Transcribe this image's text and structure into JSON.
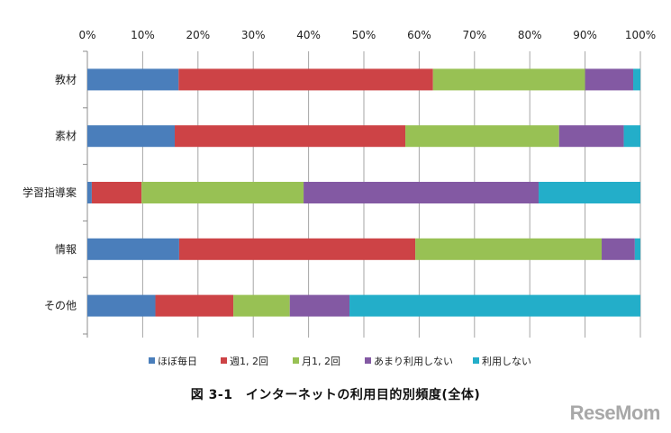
{
  "chart_data": {
    "type": "bar",
    "orientation": "horizontal",
    "stacked": "percent",
    "title": "図 3-1　インターネットの利用目的別頻度(全体)",
    "xlabel": "",
    "ylabel": "",
    "xlim": [
      0,
      100
    ],
    "x_ticks": [
      "0%",
      "10%",
      "20%",
      "30%",
      "40%",
      "50%",
      "60%",
      "70%",
      "80%",
      "90%",
      "100%"
    ],
    "x_axis_position": "top",
    "grid": true,
    "legend_position": "bottom",
    "categories": [
      "教材",
      "素材",
      "学習指導案",
      "情報",
      "その他"
    ],
    "series": [
      {
        "name": "ほぼ毎日",
        "color": "#4a7ebb",
        "values": [
          16.5,
          15.8,
          0.8,
          16.6,
          12.3
        ]
      },
      {
        "name": "週1, 2回",
        "color": "#cd4346",
        "values": [
          46.0,
          41.7,
          9.0,
          42.7,
          14.1
        ]
      },
      {
        "name": "月1, 2回",
        "color": "#98c154",
        "values": [
          27.5,
          27.8,
          29.3,
          33.7,
          10.2
        ]
      },
      {
        "name": "あまり利用しない",
        "color": "#8359a3",
        "values": [
          8.7,
          11.7,
          42.5,
          6.0,
          10.8
        ]
      },
      {
        "name": "利用しない",
        "color": "#23aec9",
        "values": [
          1.3,
          3.0,
          18.4,
          1.0,
          52.6
        ]
      }
    ]
  },
  "watermark": "ReseMom"
}
